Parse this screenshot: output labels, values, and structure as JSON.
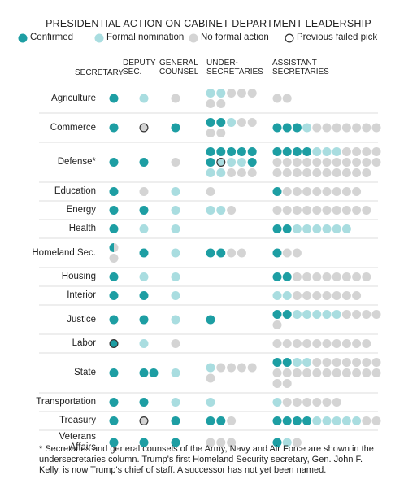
{
  "title": "PRESIDENTIAL ACTION ON CABINET DEPARTMENT LEADERSHIP",
  "legend": [
    {
      "label": "Confirmed",
      "color": "#1d9ea3"
    },
    {
      "label": "Formal nomination",
      "color": "#a9dde0"
    },
    {
      "label": "No formal action",
      "color": "#d4d4d4"
    },
    {
      "label": "Previous failed pick",
      "color": "#333333"
    }
  ],
  "columns": [
    "SECRETARY",
    "DEPUTY SEC.",
    "GENERAL COUNSEL",
    "UNDER-SECRETARIES",
    "ASSISTANT SECRETARIES"
  ],
  "rows": [
    {
      "label": "Agriculture",
      "cells": [
        [
          0
        ],
        [
          1
        ],
        [
          2
        ],
        [
          1,
          1,
          2,
          2,
          2,
          2,
          2
        ],
        [
          2,
          2
        ]
      ]
    },
    {
      "label": "Commerce",
      "cells": [
        [
          0
        ],
        [
          [
            2,
            3
          ]
        ],
        [
          0
        ],
        [
          0,
          0,
          1,
          2,
          2,
          2,
          2
        ],
        [
          0,
          0,
          0,
          1,
          2,
          2,
          2,
          2,
          2,
          2,
          2
        ]
      ]
    },
    {
      "label": "Defense*",
      "cells": [
        [
          0
        ],
        [
          0
        ],
        [
          2
        ],
        [
          0,
          0,
          0,
          0,
          0,
          0,
          [
            1,
            3
          ],
          1,
          1,
          0,
          1,
          1,
          2,
          2,
          2
        ],
        [
          0,
          0,
          0,
          0,
          1,
          1,
          1,
          2,
          2,
          2,
          2,
          2,
          2,
          2,
          2,
          2,
          2,
          2,
          2,
          2,
          2,
          2,
          2,
          2,
          2,
          2,
          2,
          2,
          2,
          2,
          2,
          2
        ]
      ]
    },
    {
      "label": "Education",
      "cells": [
        [
          0
        ],
        [
          2
        ],
        [
          1
        ],
        [
          2
        ],
        [
          0,
          2,
          2,
          2,
          2,
          2,
          2,
          2,
          2
        ]
      ]
    },
    {
      "label": "Energy",
      "cells": [
        [
          0
        ],
        [
          0
        ],
        [
          1
        ],
        [
          1,
          1,
          2
        ],
        [
          2,
          2,
          2,
          2,
          2,
          2,
          2,
          2,
          2,
          2
        ]
      ]
    },
    {
      "label": "Health",
      "cells": [
        [
          0
        ],
        [
          1
        ],
        [
          1
        ],
        [],
        [
          0,
          0,
          1,
          1,
          1,
          1,
          1,
          1
        ]
      ]
    },
    {
      "label": "Homeland Sec.",
      "cells": [
        [
          [
            0,
            2
          ],
          2
        ],
        [
          0
        ],
        [
          1
        ],
        [
          0,
          0,
          2,
          2
        ],
        [
          0,
          2,
          2
        ]
      ]
    },
    {
      "label": "Housing",
      "cells": [
        [
          0
        ],
        [
          1
        ],
        [
          1
        ],
        [],
        [
          0,
          0,
          2,
          2,
          2,
          2,
          2,
          2,
          2,
          2
        ]
      ]
    },
    {
      "label": "Interior",
      "cells": [
        [
          0
        ],
        [
          0
        ],
        [
          1
        ],
        [],
        [
          1,
          1,
          2,
          2,
          2,
          2,
          2,
          2,
          2
        ]
      ]
    },
    {
      "label": "Justice",
      "cells": [
        [
          0
        ],
        [
          0
        ],
        [
          1
        ],
        [
          0
        ],
        [
          0,
          0,
          1,
          1,
          1,
          1,
          1,
          2,
          2,
          2,
          2,
          2
        ]
      ]
    },
    {
      "label": "Labor",
      "cells": [
        [
          [
            0,
            3
          ]
        ],
        [
          1
        ],
        [
          2
        ],
        [],
        [
          2,
          2,
          2,
          2,
          2,
          2,
          2,
          2,
          2,
          2
        ]
      ]
    },
    {
      "label": "State",
      "cells": [
        [
          0
        ],
        [
          0,
          0
        ],
        [
          1
        ],
        [
          1,
          2,
          2,
          2,
          2,
          2
        ],
        [
          0,
          0,
          1,
          1,
          2,
          2,
          2,
          2,
          2,
          2,
          2,
          2,
          2,
          2,
          2,
          2,
          2,
          2,
          2,
          2,
          2,
          2,
          2,
          2
        ]
      ]
    },
    {
      "label": "Transportation",
      "cells": [
        [
          0
        ],
        [
          0
        ],
        [
          1
        ],
        [
          1
        ],
        [
          1,
          2,
          2,
          2,
          2,
          2,
          2
        ]
      ]
    },
    {
      "label": "Treasury",
      "cells": [
        [
          0
        ],
        [
          [
            2,
            3
          ]
        ],
        [
          0
        ],
        [
          0,
          0,
          2
        ],
        [
          0,
          0,
          0,
          0,
          1,
          1,
          1,
          1,
          1,
          2,
          2
        ]
      ]
    },
    {
      "label": "Veterans Affairs",
      "cells": [
        [
          0
        ],
        [
          0
        ],
        [
          0
        ],
        [
          2,
          2,
          2
        ],
        [
          0,
          1,
          2
        ]
      ]
    }
  ],
  "footnote": "* Secretaries and general counsels of the Army, Navy and Air Force are shown in the undersecretaries column. Trump's first Homeland Security secretary, Gen. John F. Kelly, is now Trump's chief of staff. A successor has not yet been named."
}
